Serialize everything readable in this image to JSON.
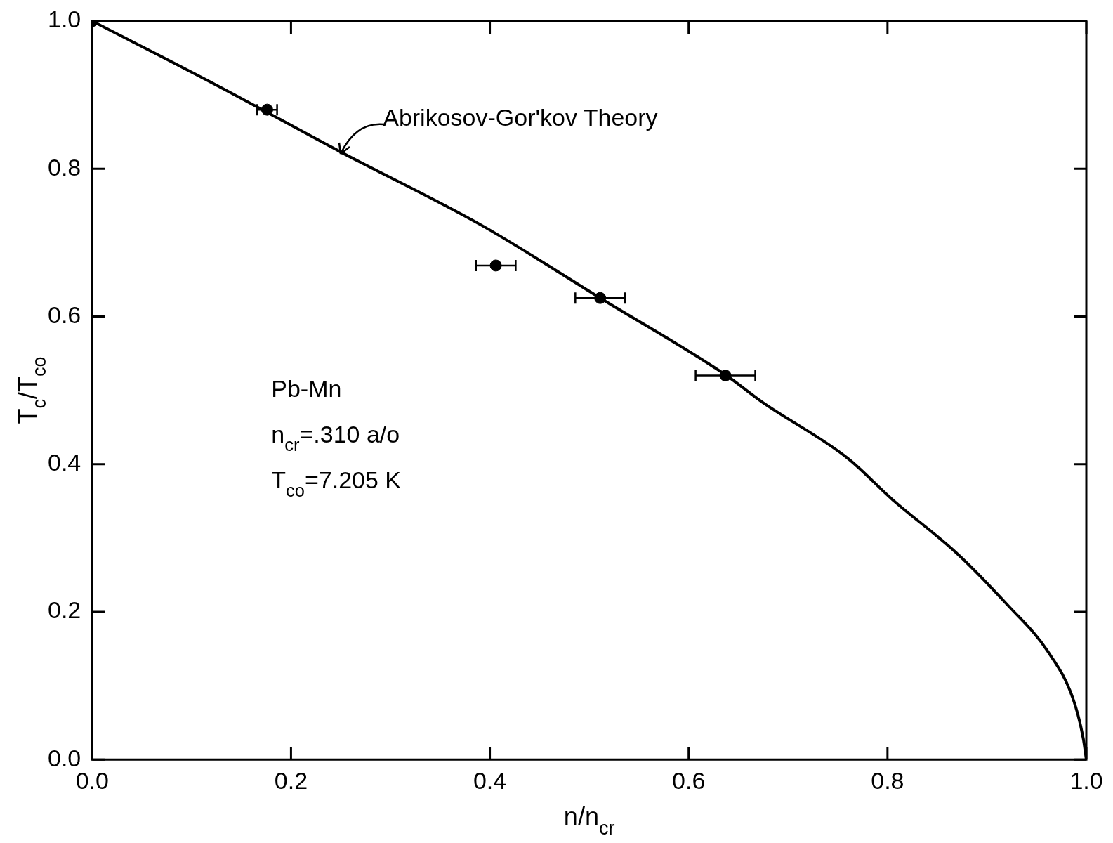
{
  "chart_data": {
    "type": "scatter",
    "xlabel": "n/n$_{cr}$",
    "ylabel": "T$_{c}$/T$_{co}$",
    "xlim": [
      0,
      1
    ],
    "ylim": [
      0,
      1
    ],
    "xticks": [
      {
        "value": 0,
        "label": "0.0"
      },
      {
        "value": 0.2,
        "label": "0.2"
      },
      {
        "value": 0.4,
        "label": "0.4"
      },
      {
        "value": 0.6,
        "label": "0.6"
      },
      {
        "value": 0.8,
        "label": "0.8"
      },
      {
        "value": 1,
        "label": "1.0"
      }
    ],
    "yticks": [
      {
        "value": 0,
        "label": "0.0"
      },
      {
        "value": 0.2,
        "label": "0.2"
      },
      {
        "value": 0.4,
        "label": "0.4"
      },
      {
        "value": 0.6,
        "label": "0.6"
      },
      {
        "value": 0.8,
        "label": "0.8"
      },
      {
        "value": 1,
        "label": "1.0"
      }
    ],
    "grid": false,
    "legend": false,
    "marker": "circle",
    "series": [
      {
        "type": "line",
        "color": "#000000",
        "marker": "none",
        "line_style": "solid",
        "x": [
          0,
          0.124,
          0.251,
          0.391,
          0.511,
          0.637,
          0.674,
          0.76,
          0.805,
          0.87,
          0.921,
          0.961,
          0.987,
          0.997,
          1
        ],
        "values": [
          1,
          0.914,
          0.822,
          0.724,
          0.625,
          0.521,
          0.484,
          0.408,
          0.352,
          0.279,
          0.209,
          0.147,
          0.081,
          0.028,
          0
        ]
      },
      {
        "color": "#000000",
        "x": [
          0,
          0.176,
          0.406,
          0.511,
          0.637
        ],
        "values": [
          1,
          0.88,
          0.669,
          0.625,
          0.52
        ],
        "xerrors": [
          null,
          0.01,
          0.02,
          0.025,
          0.03
        ]
      }
    ],
    "annotations": [
      {
        "text": "Abrikosov-Gor'kov Theory",
        "x": 0.25,
        "y": 0.82
      },
      "Pb-Mn",
      "n$_{cr}$=.310 a/o",
      "T$_{co}$=7.205 K"
    ]
  }
}
